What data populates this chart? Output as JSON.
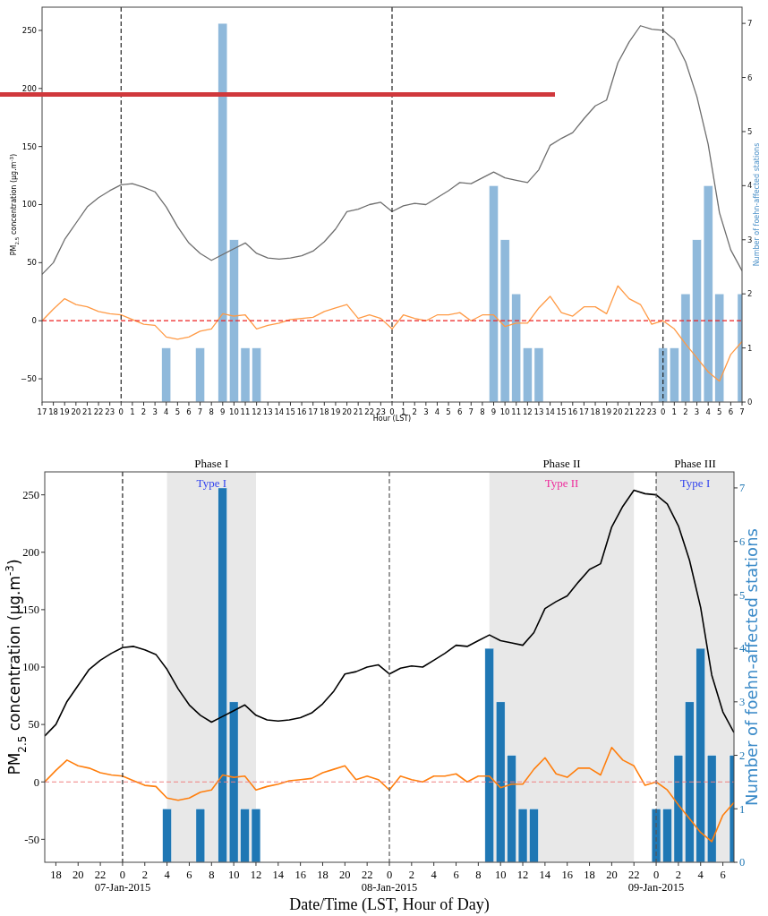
{
  "chart_data": [
    {
      "type": "line",
      "xlabel": "Hour (LST)",
      "ylabel": "PM$_{2.5}$ concentration (μg.m$^{-3}$)",
      "y2label": "Number of foehn-affected stations",
      "x": [
        "2015-01-06T17:00",
        "2015-01-06T18:00",
        "2015-01-06T19:00",
        "2015-01-06T20:00",
        "2015-01-06T21:00",
        "2015-01-06T22:00",
        "2015-01-06T23:00",
        "2015-01-07T00:00",
        "2015-01-07T01:00",
        "2015-01-07T02:00",
        "2015-01-07T03:00",
        "2015-01-07T04:00",
        "2015-01-07T05:00",
        "2015-01-07T06:00",
        "2015-01-07T07:00",
        "2015-01-07T08:00",
        "2015-01-07T09:00",
        "2015-01-07T10:00",
        "2015-01-07T11:00",
        "2015-01-07T12:00",
        "2015-01-07T13:00",
        "2015-01-07T14:00",
        "2015-01-07T15:00",
        "2015-01-07T16:00",
        "2015-01-07T17:00",
        "2015-01-07T18:00",
        "2015-01-07T19:00",
        "2015-01-07T20:00",
        "2015-01-07T21:00",
        "2015-01-07T22:00",
        "2015-01-07T23:00",
        "2015-01-08T00:00",
        "2015-01-08T01:00",
        "2015-01-08T02:00",
        "2015-01-08T03:00",
        "2015-01-08T04:00",
        "2015-01-08T05:00",
        "2015-01-08T06:00",
        "2015-01-08T07:00",
        "2015-01-08T08:00",
        "2015-01-08T09:00",
        "2015-01-08T10:00",
        "2015-01-08T11:00",
        "2015-01-08T12:00",
        "2015-01-08T13:00",
        "2015-01-08T14:00",
        "2015-01-08T15:00",
        "2015-01-08T16:00",
        "2015-01-08T17:00",
        "2015-01-08T18:00",
        "2015-01-08T19:00",
        "2015-01-08T20:00",
        "2015-01-08T21:00",
        "2015-01-08T22:00",
        "2015-01-08T23:00",
        "2015-01-09T00:00",
        "2015-01-09T01:00",
        "2015-01-09T02:00",
        "2015-01-09T03:00",
        "2015-01-09T04:00",
        "2015-01-09T05:00",
        "2015-01-09T06:00",
        "2015-01-09T07:00"
      ],
      "xlim": [
        "2015-01-06T17:00",
        "2015-01-09T07:00"
      ],
      "xticks": [
        {
          "value": "2015-01-06T17:00",
          "label": "17"
        },
        {
          "value": "2015-01-06T18:00",
          "label": "18"
        },
        {
          "value": "2015-01-06T19:00",
          "label": "19"
        },
        {
          "value": "2015-01-06T20:00",
          "label": "20"
        },
        {
          "value": "2015-01-06T21:00",
          "label": "21"
        },
        {
          "value": "2015-01-06T22:00",
          "label": "22"
        },
        {
          "value": "2015-01-06T23:00",
          "label": "23"
        },
        {
          "value": "2015-01-07T00:00",
          "label": "0"
        },
        {
          "value": "2015-01-07T01:00",
          "label": "1"
        },
        {
          "value": "2015-01-07T02:00",
          "label": "2"
        },
        {
          "value": "2015-01-07T03:00",
          "label": "3"
        },
        {
          "value": "2015-01-07T04:00",
          "label": "4"
        },
        {
          "value": "2015-01-07T05:00",
          "label": "5"
        },
        {
          "value": "2015-01-07T06:00",
          "label": "6"
        },
        {
          "value": "2015-01-07T07:00",
          "label": "7"
        },
        {
          "value": "2015-01-07T08:00",
          "label": "8"
        },
        {
          "value": "2015-01-07T09:00",
          "label": "9"
        },
        {
          "value": "2015-01-07T10:00",
          "label": "10"
        },
        {
          "value": "2015-01-07T11:00",
          "label": "11"
        },
        {
          "value": "2015-01-07T12:00",
          "label": "12"
        },
        {
          "value": "2015-01-07T13:00",
          "label": "13"
        },
        {
          "value": "2015-01-07T14:00",
          "label": "14"
        },
        {
          "value": "2015-01-07T15:00",
          "label": "15"
        },
        {
          "value": "2015-01-07T16:00",
          "label": "16"
        },
        {
          "value": "2015-01-07T17:00",
          "label": "17"
        },
        {
          "value": "2015-01-07T18:00",
          "label": "18"
        },
        {
          "value": "2015-01-07T19:00",
          "label": "19"
        },
        {
          "value": "2015-01-07T20:00",
          "label": "20"
        },
        {
          "value": "2015-01-07T21:00",
          "label": "21"
        },
        {
          "value": "2015-01-07T22:00",
          "label": "22"
        },
        {
          "value": "2015-01-07T23:00",
          "label": "23"
        },
        {
          "value": "2015-01-08T00:00",
          "label": "0"
        },
        {
          "value": "2015-01-08T01:00",
          "label": "1"
        },
        {
          "value": "2015-01-08T02:00",
          "label": "2"
        },
        {
          "value": "2015-01-08T03:00",
          "label": "3"
        },
        {
          "value": "2015-01-08T04:00",
          "label": "4"
        },
        {
          "value": "2015-01-08T05:00",
          "label": "5"
        },
        {
          "value": "2015-01-08T06:00",
          "label": "6"
        },
        {
          "value": "2015-01-08T07:00",
          "label": "7"
        },
        {
          "value": "2015-01-08T08:00",
          "label": "8"
        },
        {
          "value": "2015-01-08T09:00",
          "label": "9"
        },
        {
          "value": "2015-01-08T10:00",
          "label": "10"
        },
        {
          "value": "2015-01-08T11:00",
          "label": "11"
        },
        {
          "value": "2015-01-08T12:00",
          "label": "12"
        },
        {
          "value": "2015-01-08T13:00",
          "label": "13"
        },
        {
          "value": "2015-01-08T14:00",
          "label": "14"
        },
        {
          "value": "2015-01-08T15:00",
          "label": "15"
        },
        {
          "value": "2015-01-08T16:00",
          "label": "16"
        },
        {
          "value": "2015-01-08T17:00",
          "label": "17"
        },
        {
          "value": "2015-01-08T18:00",
          "label": "18"
        },
        {
          "value": "2015-01-08T19:00",
          "label": "19"
        },
        {
          "value": "2015-01-08T20:00",
          "label": "20"
        },
        {
          "value": "2015-01-08T21:00",
          "label": "21"
        },
        {
          "value": "2015-01-08T22:00",
          "label": "22"
        },
        {
          "value": "2015-01-08T23:00",
          "label": "23"
        },
        {
          "value": "2015-01-09T00:00",
          "label": "0"
        },
        {
          "value": "2015-01-09T01:00",
          "label": "1"
        },
        {
          "value": "2015-01-09T02:00",
          "label": "2"
        },
        {
          "value": "2015-01-09T03:00",
          "label": "3"
        },
        {
          "value": "2015-01-09T04:00",
          "label": "4"
        },
        {
          "value": "2015-01-09T05:00",
          "label": "5"
        },
        {
          "value": "2015-01-09T06:00",
          "label": "6"
        },
        {
          "value": "2015-01-09T07:00",
          "label": "7"
        }
      ],
      "ylim": [
        -70,
        270
      ],
      "yticks": [
        {
          "value": -50,
          "label": "−50"
        },
        0,
        50,
        100,
        150,
        200,
        250
      ],
      "y2lim": [
        0,
        7.3
      ],
      "y2ticks": [
        0,
        1,
        2,
        3,
        4,
        5,
        6,
        7
      ],
      "series": [
        {
          "type": "bar",
          "axis": "y2",
          "color": "#8fb9db",
          "x": [
            "2015-01-07T04:00",
            "2015-01-07T07:00",
            "2015-01-07T09:00",
            "2015-01-07T10:00",
            "2015-01-07T11:00",
            "2015-01-07T12:00",
            "2015-01-08T09:00",
            "2015-01-08T10:00",
            "2015-01-08T11:00",
            "2015-01-08T12:00",
            "2015-01-08T13:00",
            "2015-01-09T00:00",
            "2015-01-09T01:00",
            "2015-01-09T02:00",
            "2015-01-09T03:00",
            "2015-01-09T04:00",
            "2015-01-09T05:00",
            "2015-01-09T07:00"
          ],
          "values": [
            1,
            1,
            7,
            3,
            1,
            1,
            4,
            3,
            2,
            1,
            1,
            1,
            1,
            2,
            3,
            4,
            2,
            2
          ]
        },
        {
          "color": "#6e6e6e",
          "values": [
            40,
            50,
            70,
            84,
            98,
            106,
            112,
            117,
            118,
            115,
            111,
            98,
            81,
            67,
            58,
            52,
            57,
            62,
            67,
            58,
            54,
            53,
            54,
            56,
            60,
            68,
            79,
            94,
            96,
            100,
            102,
            94,
            99,
            101,
            100,
            106,
            112,
            119,
            118,
            123,
            128,
            123,
            121,
            119,
            130,
            151,
            157,
            162,
            174,
            185,
            190,
            222,
            240,
            254,
            251,
            250,
            242,
            223,
            193,
            152,
            93,
            61,
            43
          ]
        },
        {
          "color": "#ff9a45",
          "values": [
            0,
            10,
            19,
            14,
            12,
            8,
            6,
            5,
            1,
            -3,
            -4,
            -14,
            -16,
            -14,
            -9,
            -7,
            6,
            4,
            5,
            -7,
            -4,
            -2,
            1,
            2,
            3,
            8,
            11,
            14,
            2,
            5,
            2,
            -7,
            5,
            2,
            0,
            5,
            5,
            7,
            0,
            5,
            5,
            -5,
            -2,
            -2,
            11,
            21,
            7,
            4,
            12,
            12,
            6,
            30,
            19,
            14,
            -3,
            0,
            -7,
            -20,
            -32,
            -44,
            -52,
            -29,
            -18
          ]
        }
      ],
      "ref_lines": [
        {
          "axis": "x",
          "value": "2015-01-07T00:00",
          "color": "#222222",
          "line_style": "dashed"
        },
        {
          "axis": "x",
          "value": "2015-01-08T00:00",
          "color": "#222222",
          "line_style": "dashed"
        },
        {
          "axis": "x",
          "value": "2015-01-09T00:00",
          "color": "#222222",
          "line_style": "dashed"
        },
        {
          "axis": "y",
          "value": 0,
          "color": "#ee2222",
          "line_style": "dashed"
        }
      ]
    },
    {
      "type": "line",
      "xlabel": "Date/Time (LST, Hour of Day)",
      "ylabel": "PM$_{2.5}$ concentration (μg.m$^{-3}$)",
      "y2label": "Number of foehn-affected stations",
      "x": [
        "2015-01-06T17:00",
        "2015-01-06T18:00",
        "2015-01-06T19:00",
        "2015-01-06T20:00",
        "2015-01-06T21:00",
        "2015-01-06T22:00",
        "2015-01-06T23:00",
        "2015-01-07T00:00",
        "2015-01-07T01:00",
        "2015-01-07T02:00",
        "2015-01-07T03:00",
        "2015-01-07T04:00",
        "2015-01-07T05:00",
        "2015-01-07T06:00",
        "2015-01-07T07:00",
        "2015-01-07T08:00",
        "2015-01-07T09:00",
        "2015-01-07T10:00",
        "2015-01-07T11:00",
        "2015-01-07T12:00",
        "2015-01-07T13:00",
        "2015-01-07T14:00",
        "2015-01-07T15:00",
        "2015-01-07T16:00",
        "2015-01-07T17:00",
        "2015-01-07T18:00",
        "2015-01-07T19:00",
        "2015-01-07T20:00",
        "2015-01-07T21:00",
        "2015-01-07T22:00",
        "2015-01-07T23:00",
        "2015-01-08T00:00",
        "2015-01-08T01:00",
        "2015-01-08T02:00",
        "2015-01-08T03:00",
        "2015-01-08T04:00",
        "2015-01-08T05:00",
        "2015-01-08T06:00",
        "2015-01-08T07:00",
        "2015-01-08T08:00",
        "2015-01-08T09:00",
        "2015-01-08T10:00",
        "2015-01-08T11:00",
        "2015-01-08T12:00",
        "2015-01-08T13:00",
        "2015-01-08T14:00",
        "2015-01-08T15:00",
        "2015-01-08T16:00",
        "2015-01-08T17:00",
        "2015-01-08T18:00",
        "2015-01-08T19:00",
        "2015-01-08T20:00",
        "2015-01-08T21:00",
        "2015-01-08T22:00",
        "2015-01-08T23:00",
        "2015-01-09T00:00",
        "2015-01-09T01:00",
        "2015-01-09T02:00",
        "2015-01-09T03:00",
        "2015-01-09T04:00",
        "2015-01-09T05:00",
        "2015-01-09T06:00",
        "2015-01-09T07:00"
      ],
      "xlim": [
        "2015-01-06T17:00",
        "2015-01-09T07:00"
      ],
      "xticks": [
        {
          "value": "2015-01-06T18:00",
          "label": "18"
        },
        {
          "value": "2015-01-06T20:00",
          "label": "20"
        },
        {
          "value": "2015-01-06T22:00",
          "label": "22"
        },
        {
          "value": "2015-01-07T00:00",
          "label": "0\n07-Jan-2015"
        },
        {
          "value": "2015-01-07T02:00",
          "label": "2"
        },
        {
          "value": "2015-01-07T04:00",
          "label": "4"
        },
        {
          "value": "2015-01-07T06:00",
          "label": "6"
        },
        {
          "value": "2015-01-07T08:00",
          "label": "8"
        },
        {
          "value": "2015-01-07T10:00",
          "label": "10"
        },
        {
          "value": "2015-01-07T12:00",
          "label": "12"
        },
        {
          "value": "2015-01-07T14:00",
          "label": "14"
        },
        {
          "value": "2015-01-07T16:00",
          "label": "16"
        },
        {
          "value": "2015-01-07T18:00",
          "label": "18"
        },
        {
          "value": "2015-01-07T20:00",
          "label": "20"
        },
        {
          "value": "2015-01-07T22:00",
          "label": "22"
        },
        {
          "value": "2015-01-08T00:00",
          "label": "0\n08-Jan-2015"
        },
        {
          "value": "2015-01-08T02:00",
          "label": "2"
        },
        {
          "value": "2015-01-08T04:00",
          "label": "4"
        },
        {
          "value": "2015-01-08T06:00",
          "label": "6"
        },
        {
          "value": "2015-01-08T08:00",
          "label": "8"
        },
        {
          "value": "2015-01-08T10:00",
          "label": "10"
        },
        {
          "value": "2015-01-08T12:00",
          "label": "12"
        },
        {
          "value": "2015-01-08T14:00",
          "label": "14"
        },
        {
          "value": "2015-01-08T16:00",
          "label": "16"
        },
        {
          "value": "2015-01-08T18:00",
          "label": "18"
        },
        {
          "value": "2015-01-08T20:00",
          "label": "20"
        },
        {
          "value": "2015-01-08T22:00",
          "label": "22"
        },
        {
          "value": "2015-01-09T00:00",
          "label": "0\n09-Jan-2015"
        },
        {
          "value": "2015-01-09T02:00",
          "label": "2"
        },
        {
          "value": "2015-01-09T04:00",
          "label": "4"
        },
        {
          "value": "2015-01-09T06:00",
          "label": "6"
        }
      ],
      "ylim": [
        -70,
        270
      ],
      "yticks": [
        -50,
        0,
        50,
        100,
        150,
        200,
        250
      ],
      "y2lim": [
        0,
        7.3
      ],
      "y2ticks": [
        0,
        1,
        2,
        3,
        4,
        5,
        6,
        7
      ],
      "series": [
        {
          "type": "bar",
          "axis": "y2",
          "color": "#1f77b4",
          "x": [
            "2015-01-07T04:00",
            "2015-01-07T07:00",
            "2015-01-07T09:00",
            "2015-01-07T10:00",
            "2015-01-07T11:00",
            "2015-01-07T12:00",
            "2015-01-08T09:00",
            "2015-01-08T10:00",
            "2015-01-08T11:00",
            "2015-01-08T12:00",
            "2015-01-08T13:00",
            "2015-01-09T00:00",
            "2015-01-09T01:00",
            "2015-01-09T02:00",
            "2015-01-09T03:00",
            "2015-01-09T04:00",
            "2015-01-09T05:00",
            "2015-01-09T07:00"
          ],
          "values": [
            1,
            1,
            7,
            3,
            1,
            1,
            4,
            3,
            2,
            1,
            1,
            1,
            1,
            2,
            3,
            4,
            2,
            2
          ]
        },
        {
          "color": "#000000",
          "values": [
            40,
            50,
            70,
            84,
            98,
            106,
            112,
            117,
            118,
            115,
            111,
            98,
            81,
            67,
            58,
            52,
            57,
            62,
            67,
            58,
            54,
            53,
            54,
            56,
            60,
            68,
            79,
            94,
            96,
            100,
            102,
            94,
            99,
            101,
            100,
            106,
            112,
            119,
            118,
            123,
            128,
            123,
            121,
            119,
            130,
            151,
            157,
            162,
            174,
            185,
            190,
            222,
            240,
            254,
            251,
            250,
            242,
            223,
            193,
            152,
            93,
            61,
            43
          ]
        },
        {
          "color": "#ff7f0e",
          "values": [
            0,
            10,
            19,
            14,
            12,
            8,
            6,
            5,
            1,
            -3,
            -4,
            -14,
            -16,
            -14,
            -9,
            -7,
            6,
            4,
            5,
            -7,
            -4,
            -2,
            1,
            2,
            3,
            8,
            11,
            14,
            2,
            5,
            2,
            -7,
            5,
            2,
            0,
            5,
            5,
            7,
            0,
            5,
            5,
            -5,
            -2,
            -2,
            11,
            21,
            7,
            4,
            12,
            12,
            6,
            30,
            19,
            14,
            -3,
            0,
            -7,
            -20,
            -32,
            -44,
            -52,
            -29,
            -18
          ]
        }
      ],
      "bands": [
        {
          "axis": "x",
          "from": "2015-01-07T04:00",
          "to": "2015-01-07T12:00",
          "label": "Phase I",
          "color": "#e8e8e8"
        },
        {
          "axis": "x",
          "from": "2015-01-08T09:00",
          "to": "2015-01-08T22:00",
          "label": "Phase II",
          "color": "#e8e8e8"
        },
        {
          "axis": "x",
          "from": "2015-01-09T00:00",
          "to": "2015-01-09T07:00",
          "label": "Phase III",
          "color": "#e8e8e8"
        }
      ],
      "annotations": [
        "Type I",
        "Type II",
        "Type I"
      ],
      "ref_lines": [
        {
          "axis": "x",
          "value": "2015-01-07T00:00",
          "color": "#222222",
          "line_style": "dashed"
        },
        {
          "axis": "x",
          "value": "2015-01-08T00:00",
          "color": "#555555",
          "line_style": "dashed"
        },
        {
          "axis": "x",
          "value": "2015-01-09T00:00",
          "color": "#555555",
          "line_style": "dashed"
        },
        {
          "axis": "y",
          "value": 0,
          "color": "#f08080",
          "line_style": "dashed"
        }
      ]
    }
  ]
}
